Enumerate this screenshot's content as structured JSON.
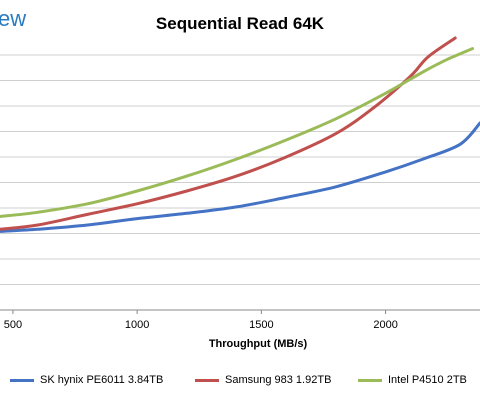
{
  "page": {
    "brand_fragment": "ew"
  },
  "chart_data": {
    "type": "line",
    "title": "Sequential Read 64K",
    "xlabel": "Throughput (MB/s)",
    "ylabel": "",
    "xlim": [
      448,
      2380
    ],
    "ylim": [
      0,
      12
    ],
    "x_ticks": [
      500,
      1000,
      1500,
      2000
    ],
    "grid": "horizontal",
    "legend_position": "bottom",
    "series": [
      {
        "name": "SK hynix PE6011 3.84TB",
        "color": "#4472c4",
        "points": [
          [
            448,
            3.7
          ],
          [
            600,
            3.8
          ],
          [
            800,
            4.0
          ],
          [
            1000,
            4.3
          ],
          [
            1200,
            4.55
          ],
          [
            1400,
            4.85
          ],
          [
            1600,
            5.3
          ],
          [
            1800,
            5.8
          ],
          [
            2000,
            6.5
          ],
          [
            2150,
            7.1
          ],
          [
            2300,
            7.8
          ],
          [
            2380,
            8.8
          ]
        ]
      },
      {
        "name": "Samsung 983 1.92TB",
        "color": "#c0504d",
        "points": [
          [
            448,
            3.8
          ],
          [
            600,
            4.0
          ],
          [
            800,
            4.5
          ],
          [
            1000,
            5.0
          ],
          [
            1200,
            5.6
          ],
          [
            1400,
            6.3
          ],
          [
            1600,
            7.2
          ],
          [
            1800,
            8.3
          ],
          [
            1950,
            9.5
          ],
          [
            2100,
            11.0
          ],
          [
            2170,
            11.9
          ],
          [
            2280,
            12.8
          ]
        ]
      },
      {
        "name": "Intel P4510 2TB",
        "color": "#9bbb59",
        "points": [
          [
            448,
            4.4
          ],
          [
            600,
            4.6
          ],
          [
            800,
            5.0
          ],
          [
            1000,
            5.6
          ],
          [
            1200,
            6.3
          ],
          [
            1400,
            7.1
          ],
          [
            1600,
            8.0
          ],
          [
            1800,
            9.0
          ],
          [
            2000,
            10.2
          ],
          [
            2150,
            11.2
          ],
          [
            2250,
            11.8
          ],
          [
            2350,
            12.3
          ]
        ]
      }
    ]
  }
}
